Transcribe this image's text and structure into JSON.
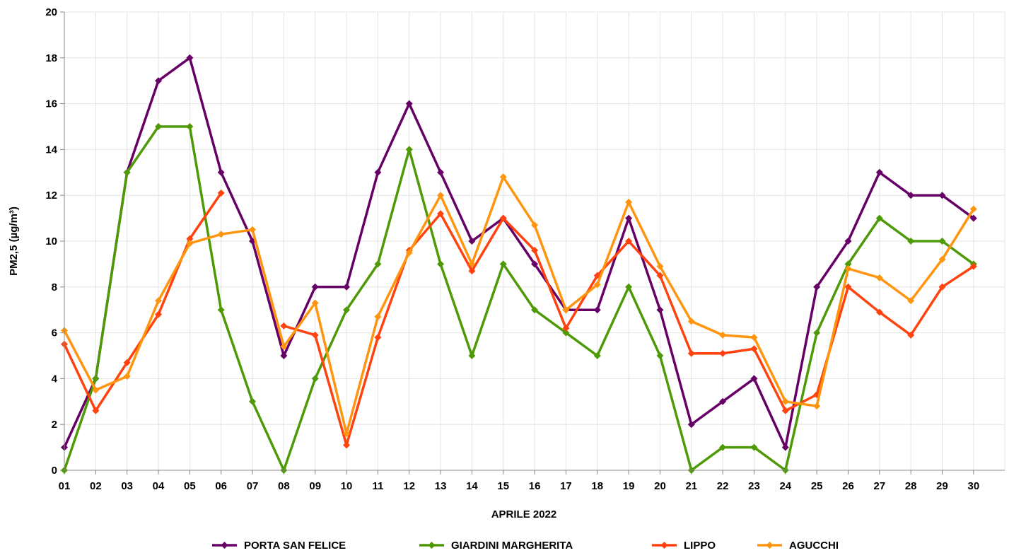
{
  "chart_data": {
    "type": "line",
    "xlabel": "APRILE 2022",
    "ylabel": "PM2,5 (µg/m³)",
    "ylim": [
      0,
      20
    ],
    "yticks": [
      0,
      2,
      4,
      6,
      8,
      10,
      12,
      14,
      16,
      18,
      20
    ],
    "grid": true,
    "legend_position": "bottom",
    "categories": [
      "01",
      "02",
      "03",
      "04",
      "05",
      "06",
      "07",
      "08",
      "09",
      "10",
      "11",
      "12",
      "13",
      "14",
      "15",
      "16",
      "17",
      "18",
      "19",
      "20",
      "21",
      "22",
      "23",
      "24",
      "25",
      "26",
      "27",
      "28",
      "29",
      "30"
    ],
    "series": [
      {
        "name": "PORTA SAN FELICE",
        "color": "#660066",
        "values": [
          1,
          4,
          13,
          17,
          18,
          13,
          10,
          5,
          8,
          8,
          13,
          16,
          13,
          10,
          11,
          9,
          7,
          7,
          11,
          7,
          2,
          3,
          4,
          1,
          8,
          10,
          13,
          12,
          12,
          11
        ]
      },
      {
        "name": "GIARDINI MARGHERITA",
        "color": "#4e9a06",
        "values": [
          0,
          4,
          13,
          15,
          15,
          7,
          3,
          0,
          4,
          7,
          9,
          14,
          9,
          5,
          9,
          7,
          6,
          5,
          8,
          5,
          0,
          1,
          1,
          0,
          6,
          9,
          11,
          10,
          10,
          9
        ]
      },
      {
        "name": "LIPPO",
        "color": "#ff420e",
        "values": [
          5.5,
          2.6,
          4.7,
          6.8,
          10.1,
          12.1,
          null,
          6.3,
          5.9,
          1.1,
          5.8,
          9.6,
          11.2,
          8.7,
          11,
          9.6,
          6.2,
          8.5,
          10,
          8.5,
          5.1,
          5.1,
          5.3,
          2.6,
          3.3,
          8,
          6.9,
          5.9,
          8,
          8.9
        ]
      },
      {
        "name": "AGUCCHI",
        "color": "#ff950e",
        "values": [
          6.1,
          3.5,
          4.1,
          7.4,
          9.9,
          10.3,
          10.5,
          5.4,
          7.3,
          1.6,
          6.7,
          9.5,
          12,
          9,
          12.8,
          10.7,
          7,
          8.1,
          11.7,
          8.9,
          6.5,
          5.9,
          5.8,
          3,
          2.8,
          8.8,
          8.4,
          7.4,
          9.2,
          11.4
        ]
      }
    ]
  }
}
